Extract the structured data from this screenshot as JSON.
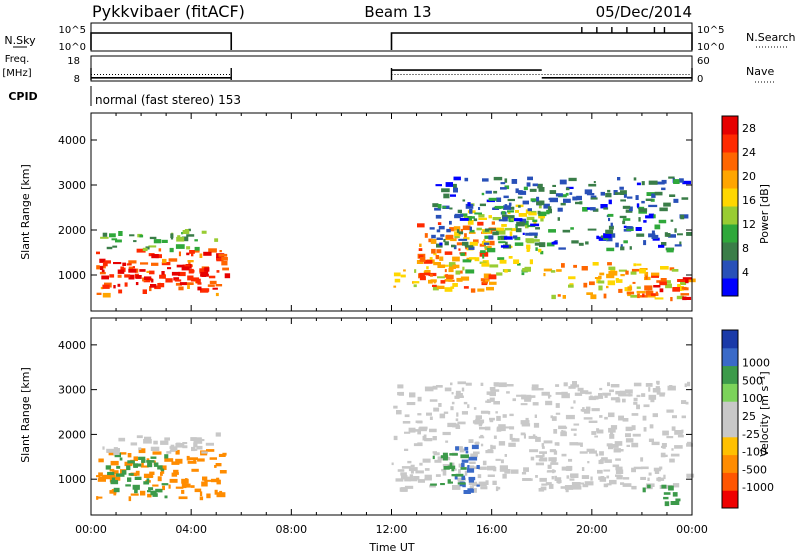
{
  "header": {
    "radar": "Pykkvibaer (fitACF)",
    "beam": "Beam 13",
    "date": "05/Dec/2014"
  },
  "panels": {
    "nsky": {
      "label": "N.Sky",
      "ticks": [
        "10^5",
        "10^0"
      ]
    },
    "nsearch": {
      "label": "N.Search",
      "ticks": [
        "10^5",
        "10^0"
      ]
    },
    "freq": {
      "label_top": "Freq.",
      "label_bottom": "[MHz]",
      "ticks": [
        "18",
        "8"
      ]
    },
    "nave": {
      "label": "Nave",
      "ticks": [
        "60",
        "0"
      ]
    },
    "cpid": {
      "label": "CPID",
      "text": "normal (fast stereo) 153"
    }
  },
  "colors": {
    "power": [
      "#0000ff",
      "#2850b8",
      "#3a7d48",
      "#2fa83a",
      "#99cc33",
      "#ffd700",
      "#ffa500",
      "#ff6600",
      "#ff2a00",
      "#e60000"
    ],
    "velocity": [
      "#ee0000",
      "#ff5500",
      "#ff8c00",
      "#ffc000",
      "#c8c8c8",
      "#c8c8c8",
      "#7cd35a",
      "#3c9a4a",
      "#3a6ac8",
      "#1a3aa8"
    ]
  },
  "chart_data": [
    {
      "type": "line",
      "title": "N.Sky / N.Search",
      "xlabel": "",
      "x_range": [
        0,
        24
      ],
      "note_segments": [
        [
          0,
          5.6
        ],
        [
          12,
          24
        ]
      ],
      "series": [
        {
          "name": "N.Sky",
          "style": "solid"
        },
        {
          "name": "N.Search",
          "style": "dotted"
        }
      ]
    },
    {
      "type": "line",
      "title": "Freq. / Nave",
      "x_range": [
        0,
        24
      ],
      "series": [
        {
          "name": "Freq.",
          "ylim": [
            8,
            18
          ],
          "segments": [
            {
              "x": [
                0,
                5.6
              ],
              "y": [
                9,
                9
              ]
            },
            {
              "x": [
                12,
                18
              ],
              "y": [
                12.5,
                12.5
              ]
            },
            {
              "x": [
                18,
                24
              ],
              "y": [
                9,
                9
              ]
            }
          ]
        },
        {
          "name": "Nave",
          "ylim": [
            0,
            60
          ],
          "style": "dotted",
          "segments": [
            {
              "x": [
                0,
                5.6
              ],
              "y": [
                15,
                15
              ]
            },
            {
              "x": [
                12,
                24
              ],
              "y": [
                15,
                15
              ]
            }
          ]
        }
      ]
    },
    {
      "type": "heatmap",
      "title": "Power",
      "ylabel": "Slant Range [km]",
      "xlabel": "Time UT",
      "x_range": [
        0,
        24
      ],
      "ylim": [
        200,
        4600
      ],
      "yticks": [
        1000,
        2000,
        3000,
        4000
      ],
      "colorbar": {
        "label": "Power [dB]",
        "ticks": [
          "4",
          "8",
          "12",
          "16",
          "20",
          "24",
          "28"
        ],
        "range": [
          0,
          30
        ]
      },
      "blobs": [
        {
          "t": [
            0.2,
            5.4
          ],
          "r": [
            600,
            1600
          ],
          "value": 24
        },
        {
          "t": [
            0.3,
            5.0
          ],
          "r": [
            700,
            1200
          ],
          "value": 28
        },
        {
          "t": [
            0.2,
            5.0
          ],
          "r": [
            1600,
            2050
          ],
          "value": 10
        },
        {
          "t": [
            12.0,
            14.5
          ],
          "r": [
            700,
            1500
          ],
          "value": 18
        },
        {
          "t": [
            13.0,
            16.0
          ],
          "r": [
            700,
            2200
          ],
          "value": 22
        },
        {
          "t": [
            14.5,
            18.0
          ],
          "r": [
            1000,
            2600
          ],
          "value": 14
        },
        {
          "t": [
            13.5,
            23.8
          ],
          "r": [
            1600,
            3200
          ],
          "value": 6
        },
        {
          "t": [
            18.0,
            23.8
          ],
          "r": [
            500,
            1300
          ],
          "value": 18
        },
        {
          "t": [
            21.5,
            23.8
          ],
          "r": [
            500,
            1000
          ],
          "value": 26
        }
      ]
    },
    {
      "type": "heatmap",
      "title": "Velocity",
      "ylabel": "Slant Range [km]",
      "xlabel": "Time UT",
      "x_range": [
        0,
        24
      ],
      "ylim": [
        200,
        4600
      ],
      "yticks": [
        1000,
        2000,
        3000,
        4000
      ],
      "xticks": [
        "00:00",
        "04:00",
        "08:00",
        "12:00",
        "16:00",
        "20:00",
        "00:00"
      ],
      "colorbar": {
        "label": "Velocity [m s⁻¹]",
        "ticks": [
          "-1000",
          "-500",
          "-100",
          "-25",
          "25",
          "100",
          "500",
          "1000"
        ]
      },
      "blobs": [
        {
          "t": [
            0.2,
            5.4
          ],
          "r": [
            600,
            1700
          ],
          "value": -100
        },
        {
          "t": [
            0.5,
            3.0
          ],
          "r": [
            600,
            1600
          ],
          "value": 100
        },
        {
          "t": [
            0.2,
            5.0
          ],
          "r": [
            1600,
            2050
          ],
          "value": 0
        },
        {
          "t": [
            12.0,
            23.8
          ],
          "r": [
            800,
            3200
          ],
          "value": 0
        },
        {
          "t": [
            14.5,
            15.5
          ],
          "r": [
            600,
            1800
          ],
          "value": 500
        },
        {
          "t": [
            13.5,
            15.0
          ],
          "r": [
            900,
            1600
          ],
          "value": 100
        },
        {
          "t": [
            22.0,
            23.5
          ],
          "r": [
            500,
            900
          ],
          "value": 100
        }
      ]
    }
  ]
}
